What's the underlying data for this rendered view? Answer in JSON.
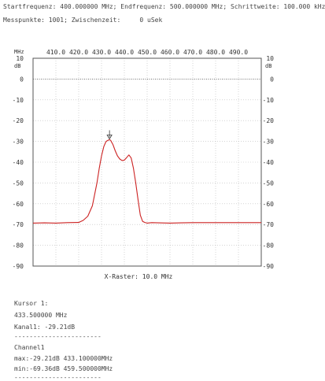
{
  "header": {
    "line1": "Startfrequenz: 400.000000 MHz; Endfrequenz: 500.000000 MHz; Schrittweite: 100.000 kHz",
    "line2": "Messpunkte: 1001; Zwischenzeit:     0 uSek"
  },
  "chart_data": {
    "type": "line",
    "x_unit_label": "MHz",
    "y_unit_label": "dB",
    "x_ticks": [
      410,
      420,
      430,
      440,
      450,
      460,
      470,
      480,
      490
    ],
    "x_tick_labels": [
      "410.0",
      "420.0",
      "430.0",
      "440.0",
      "450.0",
      "460.0",
      "470.0",
      "480.0",
      "490.0"
    ],
    "xlim": [
      400,
      500
    ],
    "y_ticks": [
      10,
      0,
      -10,
      -20,
      -30,
      -40,
      -50,
      -60,
      -70,
      -80,
      -90
    ],
    "ylim": [
      -90,
      10
    ],
    "reference_line_db": 0,
    "grid": true,
    "footer_label": "X-Raster: 10.0 MHz",
    "series": [
      {
        "color": "#cc2222",
        "x": [
          400,
          405,
          410,
          415,
          420,
          422,
          424,
          426,
          428,
          429,
          430,
          431,
          432,
          433,
          433.5,
          434,
          435,
          436,
          437,
          438,
          439,
          440,
          441,
          442,
          443,
          444,
          445,
          446,
          447,
          448,
          449,
          450,
          452,
          455,
          460,
          465,
          470,
          475,
          480,
          485,
          490,
          495,
          500
        ],
        "y": [
          -69.3,
          -69.2,
          -69.3,
          -69.1,
          -69.0,
          -68.0,
          -66.0,
          -61.0,
          -50.0,
          -43.0,
          -37.0,
          -32.5,
          -30.0,
          -29.4,
          -29.2,
          -29.5,
          -31.5,
          -34.5,
          -37.0,
          -38.5,
          -39.2,
          -39.0,
          -37.8,
          -36.5,
          -38.0,
          -43.0,
          -50.0,
          -58.0,
          -65.5,
          -68.5,
          -69.0,
          -69.3,
          -69.1,
          -69.2,
          -69.3,
          -69.2,
          -69.1,
          -69.1,
          -69.1,
          -69.1,
          -69.1,
          -69.1,
          -69.1
        ]
      }
    ],
    "marker": {
      "x": 433.5,
      "y": -29.21
    }
  },
  "info": {
    "cursor_title": "Kursor 1:",
    "cursor_freq": "433.500000 MHz",
    "cursor_level": "Kanal1: -29.21dB",
    "separator": "-----------------------",
    "channel_title": "Channel1",
    "max_line": "max:-29.21dB 433.100000MHz",
    "min_line": "min:-69.36dB 459.500000MHz",
    "separator2": "-----------------------"
  }
}
